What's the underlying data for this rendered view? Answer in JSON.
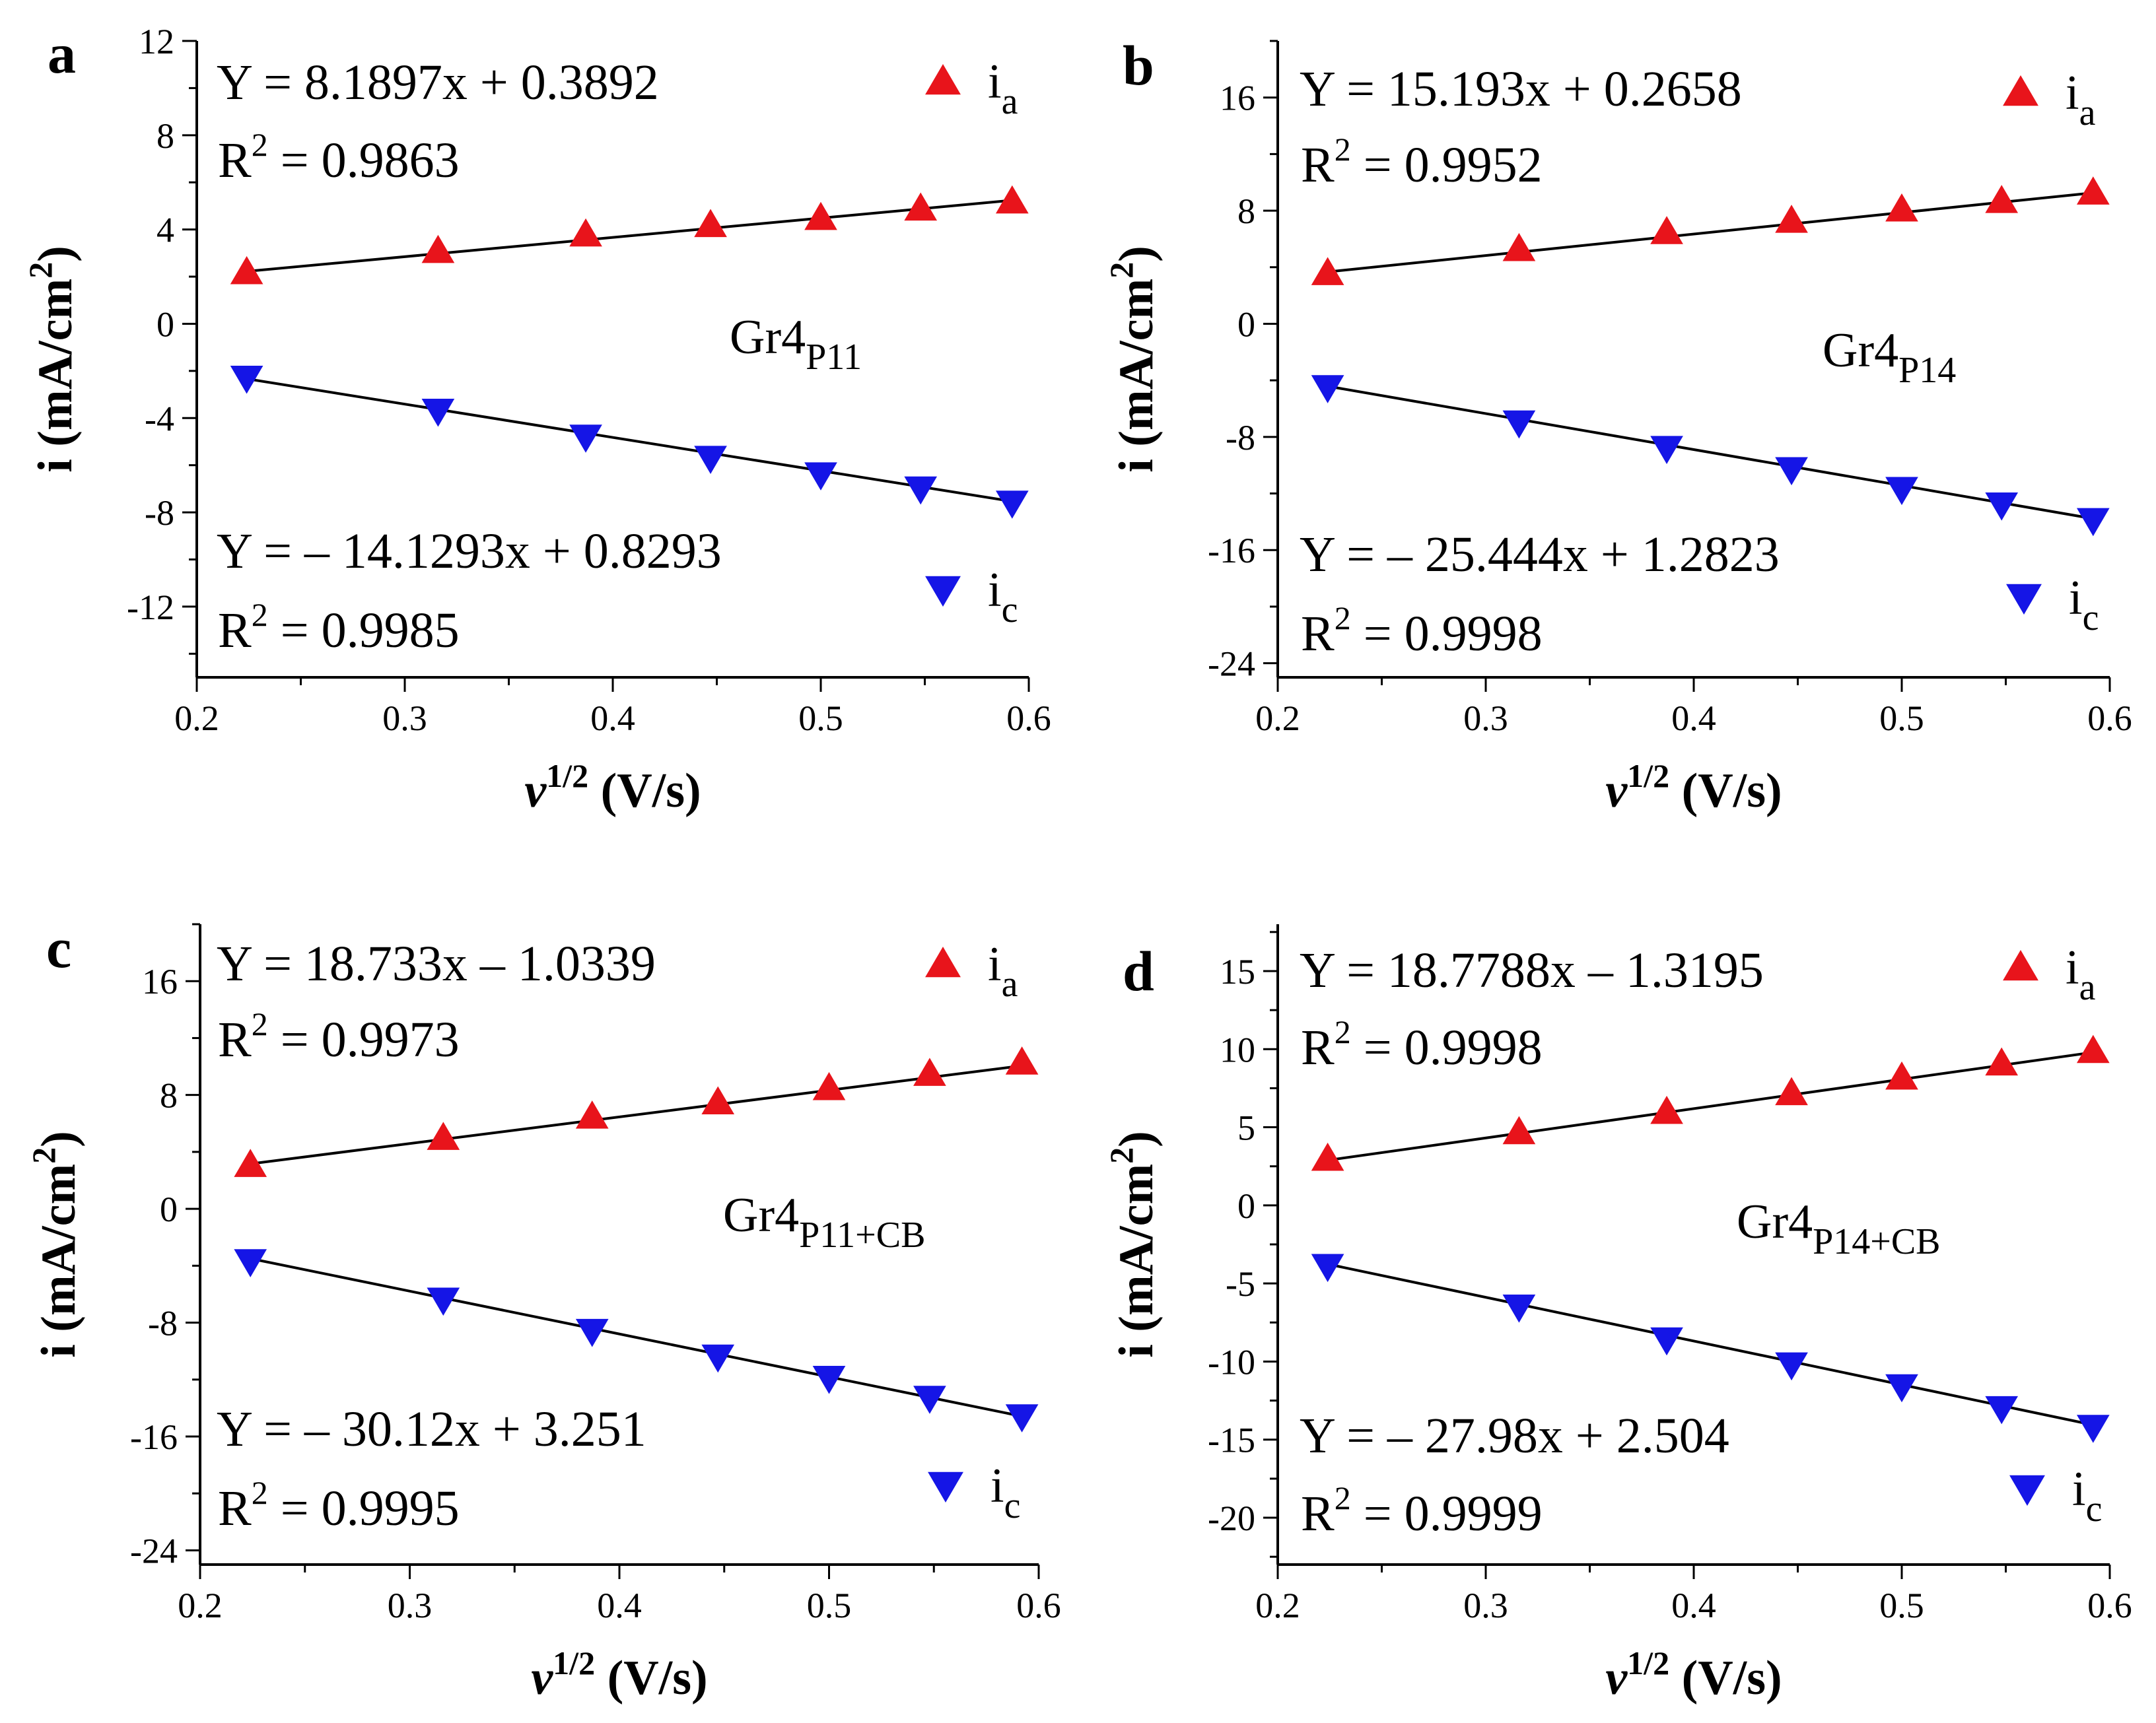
{
  "chart_data": [
    {
      "panel": "a",
      "type": "scatter",
      "sample": {
        "base": "Gr4",
        "sub": "P11"
      },
      "xlabel": {
        "symbol": "v",
        "sup": "1/2",
        "unit": "(V/s)"
      },
      "ylabel": {
        "main": "i (mA/cm",
        "sup": "2",
        "close": ")"
      },
      "xlim": [
        0.2,
        0.6
      ],
      "ylim": [
        -15,
        12
      ],
      "xticks": [
        0.2,
        0.3,
        0.4,
        0.5,
        0.6
      ],
      "xtick_labels": [
        "0.2",
        "0.3",
        "0.4",
        "0.5",
        "0.6"
      ],
      "yticks": [
        -12,
        -8,
        -4,
        0,
        4,
        8,
        12
      ],
      "ytick_labels": [
        "-12",
        "-8",
        "-4",
        "0",
        "4",
        "8",
        "12"
      ],
      "x": [
        0.224,
        0.316,
        0.387,
        0.447,
        0.5,
        0.548,
        0.592
      ],
      "series": [
        {
          "name": "ia",
          "label_base": "i",
          "label_sub": "a",
          "marker": "triangle-up",
          "color": "#e8141b",
          "values": [
            2.2,
            3.1,
            3.8,
            4.2,
            4.5,
            4.9,
            5.2
          ],
          "fit": {
            "slope": 8.1897,
            "intercept": 0.3892
          },
          "equation": "Y = 8.1897x + 0.3892",
          "r2": "= 0.9863"
        },
        {
          "name": "ic",
          "label_base": "i",
          "label_sub": "c",
          "marker": "triangle-down",
          "color": "#1515e6",
          "values": [
            -2.3,
            -3.7,
            -4.8,
            -5.7,
            -6.4,
            -7.0,
            -7.6
          ],
          "fit": {
            "slope": -14.1293,
            "intercept": 0.8293
          },
          "equation": "Y = – 14.1293x + 0.8293",
          "r2": "= 0.9985"
        }
      ]
    },
    {
      "panel": "b",
      "type": "scatter",
      "sample": {
        "base": "Gr4",
        "sub": "P14"
      },
      "xlabel": {
        "symbol": "v",
        "sup": "1/2",
        "unit": "(V/s)"
      },
      "ylabel": {
        "main": "i (mA/cm",
        "sup": "2",
        "close": ")"
      },
      "xlim": [
        0.2,
        0.6
      ],
      "ylim": [
        -25,
        20
      ],
      "xticks": [
        0.2,
        0.3,
        0.4,
        0.5,
        0.6
      ],
      "xtick_labels": [
        "0.2",
        "0.3",
        "0.4",
        "0.5",
        "0.6"
      ],
      "yticks": [
        -24,
        -16,
        -8,
        0,
        8,
        16
      ],
      "ytick_labels": [
        "-24",
        "-16",
        "-8",
        "0",
        "8",
        "16"
      ],
      "x": [
        0.224,
        0.316,
        0.387,
        0.447,
        0.5,
        0.548,
        0.592
      ],
      "series": [
        {
          "name": "ia",
          "label_base": "i",
          "label_sub": "a",
          "marker": "triangle-up",
          "color": "#e8141b",
          "values": [
            3.6,
            5.3,
            6.5,
            7.3,
            8.1,
            8.7,
            9.3
          ],
          "fit": {
            "slope": 15.193,
            "intercept": 0.2658
          },
          "equation": "Y = 15.193x + 0.2658",
          "r2": "= 0.9952"
        },
        {
          "name": "ic",
          "label_base": "i",
          "label_sub": "c",
          "marker": "triangle-down",
          "color": "#1515e6",
          "values": [
            -4.5,
            -7.0,
            -8.8,
            -10.3,
            -11.7,
            -12.8,
            -13.9
          ],
          "fit": {
            "slope": -25.444,
            "intercept": 1.2823
          },
          "equation": "Y = – 25.444x + 1.2823",
          "r2": "= 0.9998"
        }
      ]
    },
    {
      "panel": "c",
      "type": "scatter",
      "sample": {
        "base": "Gr4",
        "sub": "P11+CB"
      },
      "xlabel": {
        "symbol": "v",
        "sup": "1/2",
        "unit": "(V/s)"
      },
      "ylabel": {
        "main": "i (mA/cm",
        "sup": "2",
        "close": ")"
      },
      "xlim": [
        0.2,
        0.6
      ],
      "ylim": [
        -25,
        20
      ],
      "xticks": [
        0.2,
        0.3,
        0.4,
        0.5,
        0.6
      ],
      "xtick_labels": [
        "0.2",
        "0.3",
        "0.4",
        "0.5",
        "0.6"
      ],
      "yticks": [
        -24,
        -16,
        -8,
        0,
        8,
        16
      ],
      "ytick_labels": [
        "-24",
        "-16",
        "-8",
        "0",
        "8",
        "16"
      ],
      "x": [
        0.224,
        0.316,
        0.387,
        0.447,
        0.5,
        0.548,
        0.592
      ],
      "series": [
        {
          "name": "ia",
          "label_base": "i",
          "label_sub": "a",
          "marker": "triangle-up",
          "color": "#e8141b",
          "values": [
            3.1,
            5.0,
            6.5,
            7.5,
            8.5,
            9.5,
            10.3
          ],
          "fit": {
            "slope": 18.733,
            "intercept": -1.0339
          },
          "equation": "Y = 18.733x – 1.0339",
          "r2": "= 0.9973"
        },
        {
          "name": "ic",
          "label_base": "i",
          "label_sub": "c",
          "marker": "triangle-down",
          "color": "#1515e6",
          "values": [
            -3.7,
            -6.4,
            -8.6,
            -10.4,
            -11.9,
            -13.3,
            -14.6
          ],
          "fit": {
            "slope": -30.12,
            "intercept": 3.251
          },
          "equation": "Y = – 30.12x + 3.251",
          "r2": "= 0.9995"
        }
      ]
    },
    {
      "panel": "d",
      "type": "scatter",
      "sample": {
        "base": "Gr4",
        "sub": "P14+CB"
      },
      "xlabel": {
        "symbol": "v",
        "sup": "1/2",
        "unit": "(V/s)"
      },
      "ylabel": {
        "main": "i (mA/cm",
        "sup": "2",
        "close": ")"
      },
      "xlim": [
        0.2,
        0.6
      ],
      "ylim": [
        -23,
        18
      ],
      "xticks": [
        0.2,
        0.3,
        0.4,
        0.5,
        0.6
      ],
      "xtick_labels": [
        "0.2",
        "0.3",
        "0.4",
        "0.5",
        "0.6"
      ],
      "yticks": [
        -20,
        -15,
        -10,
        -5,
        0,
        5,
        10,
        15
      ],
      "ytick_labels": [
        "-20",
        "-15",
        "-10",
        "-5",
        "0",
        "5",
        "10",
        "15"
      ],
      "x": [
        0.224,
        0.316,
        0.387,
        0.447,
        0.5,
        0.548,
        0.592
      ],
      "series": [
        {
          "name": "ia",
          "label_base": "i",
          "label_sub": "a",
          "marker": "triangle-up",
          "color": "#e8141b",
          "values": [
            3.0,
            4.7,
            6.0,
            7.2,
            8.2,
            9.1,
            9.9
          ],
          "fit": {
            "slope": 18.7788,
            "intercept": -1.3195
          },
          "equation": "Y = 18.7788x – 1.3195",
          "r2": "= 0.9998"
        },
        {
          "name": "ic",
          "label_base": "i",
          "label_sub": "c",
          "marker": "triangle-down",
          "color": "#1515e6",
          "values": [
            -3.9,
            -6.5,
            -8.6,
            -10.2,
            -11.6,
            -13.0,
            -14.2
          ],
          "fit": {
            "slope": -27.98,
            "intercept": 2.504
          },
          "equation": "Y = – 27.98x + 2.504",
          "r2": "= 0.9999"
        }
      ]
    }
  ]
}
